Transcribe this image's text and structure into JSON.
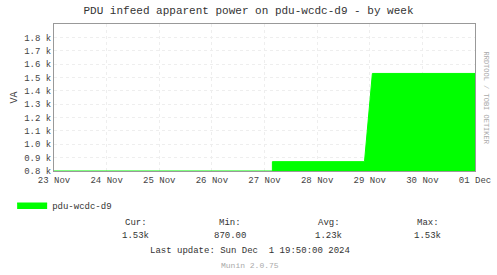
{
  "chart_data": {
    "type": "area",
    "title": "PDU infeed apparent power on pdu-wcdc-d9 - by week",
    "ylabel": "VA",
    "x": [
      0.0,
      4.0,
      4.0,
      4.15,
      4.15,
      5.9,
      5.9,
      6.05,
      6.05,
      8.0
    ],
    "series": [
      {
        "name": "pdu-wcdc-d9",
        "color": "#00FF00",
        "values": [
          800,
          800,
          800,
          800,
          870,
          870,
          870,
          1530,
          1530,
          1530
        ]
      }
    ],
    "xlim": [
      0,
      8
    ],
    "xticks": [
      {
        "value": 0,
        "label": "23 Nov"
      },
      {
        "value": 1,
        "label": "24 Nov"
      },
      {
        "value": 2,
        "label": "25 Nov"
      },
      {
        "value": 3,
        "label": "26 Nov"
      },
      {
        "value": 4,
        "label": "27 Nov"
      },
      {
        "value": 5,
        "label": "28 Nov"
      },
      {
        "value": 6,
        "label": "29 Nov"
      },
      {
        "value": 7,
        "label": "30 Nov"
      },
      {
        "value": 8,
        "label": "01 Dec"
      }
    ],
    "ylim": [
      800,
      1900
    ],
    "yticks": [
      {
        "value": 800,
        "label": "0.8 k"
      },
      {
        "value": 900,
        "label": "0.9 k"
      },
      {
        "value": 1000,
        "label": "1.0 k"
      },
      {
        "value": 1100,
        "label": "1.1 k"
      },
      {
        "value": 1200,
        "label": "1.2 k"
      },
      {
        "value": 1300,
        "label": "1.3 k"
      },
      {
        "value": 1400,
        "label": "1.4 k"
      },
      {
        "value": 1500,
        "label": "1.5 k"
      },
      {
        "value": 1600,
        "label": "1.6 k"
      },
      {
        "value": 1700,
        "label": "1.7 k"
      },
      {
        "value": 1800,
        "label": "1.8 k"
      }
    ],
    "grid": true,
    "legend": "lower left",
    "annotations": [
      "Cur:",
      "1.53k",
      "Min:",
      "870.00",
      "Avg:",
      "1.23k",
      "Max:",
      "1.53k",
      "Last update: Sun Dec  1 19:50:00 2024",
      "Munin 2.0.75",
      "RRDTOOL / TOBI OETIKER"
    ]
  }
}
